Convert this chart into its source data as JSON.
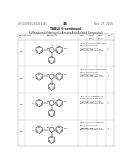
{
  "bg_color": "#ffffff",
  "header_left": "US 2006/0264416 A1",
  "header_center": "38",
  "header_right": "Nov. 23, 2006",
  "table_title": "TABLE 5-continued",
  "table_subtitle": "5-Membered Heterocyclic Amides And Related Compounds",
  "col_headers_line1": [
    "Compound",
    "Structure",
    "MW",
    "IC50",
    "IC50",
    "N"
  ],
  "col_headers_line2": [
    "#",
    "",
    "",
    "(nM)",
    "(nM)",
    ""
  ],
  "row_labels": [
    "5.3",
    "5.4",
    "5.5",
    "5.6"
  ],
  "mw_values": [
    "313.37",
    "313.37",
    "343.39",
    "317.82"
  ],
  "ic50_1": [
    "125",
    "285",
    "175",
    "195"
  ],
  "ic50_2": [
    "1.1",
    "1.4",
    "1.2",
    "1.3"
  ],
  "n_values": [
    "1",
    "1",
    "1",
    "1"
  ],
  "right_text_blocks": [
    [
      "(S)-N-(1-(4-methoxyphenyl)",
      "ethyl)-3-methyl-N'-",
      "(thiadiazol-2-yl)-1H-",
      "pyrazole-5-carboxamide"
    ],
    [
      "(S)-N-(1-(3-methoxyphenyl)",
      "ethyl)-3-methyl-N'-",
      "(thiadiazol-2-yl)-1H-",
      "pyrazole-5-carboxamide"
    ],
    [
      "(S)-N-(1-(3,4-dimethoxy-",
      "phenyl)ethyl)-3-methyl-",
      "N'-(thiadiazol-2-yl)-1H-",
      "pyrazole-5-carboxamide"
    ],
    [
      "(S)-N-(1-(3-chlorophenyl)",
      "ethyl)-3-methyl-N'-",
      "(thiadiazol-2-yl)-1H-",
      "pyrazole-5-carboxamide"
    ]
  ],
  "line_color": "#aaaaaa",
  "text_color": "#333333",
  "header_color": "#222222"
}
